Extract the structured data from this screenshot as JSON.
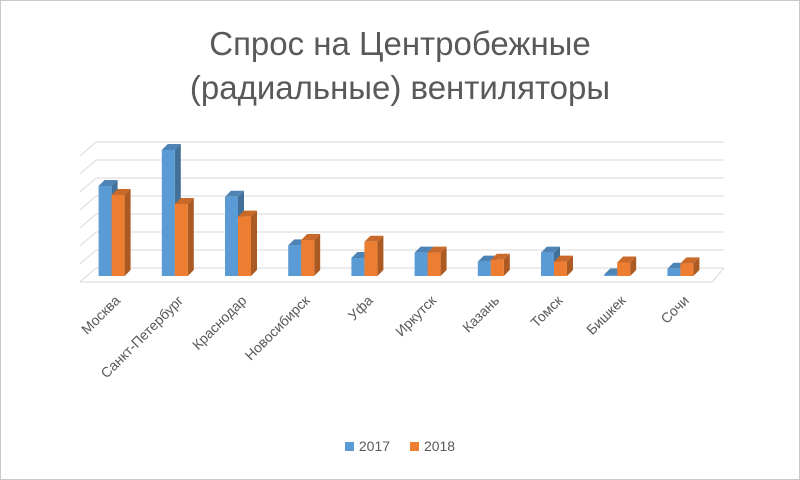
{
  "chart_data": {
    "type": "bar",
    "title": "Спрос на Центробежные (радиальные) вентиляторы",
    "title_lines": [
      "Спрос на Центробежные",
      "(радиальные) вентиляторы"
    ],
    "categories": [
      "Москва",
      "Санкт-Петербург",
      "Краснодар",
      "Новосибирск",
      "Уфа",
      "Иркутск",
      "Казань",
      "Томск",
      "Бишкек",
      "Сочи"
    ],
    "series": [
      {
        "name": "2017",
        "color": "#5b9bd5",
        "values": [
          5.0,
          7.0,
          4.4,
          1.7,
          1.0,
          1.3,
          0.8,
          1.3,
          0.05,
          0.4
        ]
      },
      {
        "name": "2018",
        "color": "#ed7d31",
        "values": [
          4.5,
          4.0,
          3.3,
          2.0,
          1.9,
          1.3,
          0.9,
          0.8,
          0.75,
          0.7
        ]
      }
    ],
    "ylim": [
      0,
      7
    ],
    "grid": true,
    "legend_position": "bottom",
    "style": "3d-column"
  }
}
